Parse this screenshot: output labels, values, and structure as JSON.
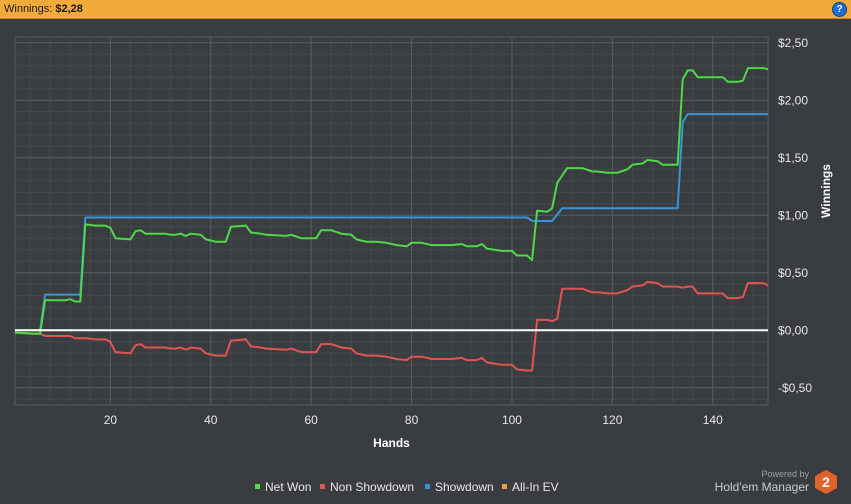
{
  "header": {
    "label": "Winnings:",
    "value": "$2,28",
    "help_icon": "?"
  },
  "chart_data": {
    "type": "line",
    "xlabel": "Hands",
    "ylabel": "Winnings",
    "xlim": [
      1,
      151
    ],
    "ylim": [
      -0.65,
      2.55
    ],
    "x_ticks": [
      20,
      40,
      60,
      80,
      100,
      120,
      140
    ],
    "x_tick_labels": [
      "20",
      "40",
      "60",
      "80",
      "100",
      "120",
      "140"
    ],
    "y_ticks": [
      -0.5,
      0,
      0.5,
      1.0,
      1.5,
      2.0,
      2.5
    ],
    "y_tick_labels": [
      "-$0,50",
      "$0,00",
      "$0,50",
      "$1,00",
      "$1,50",
      "$2,00",
      "$2,50"
    ],
    "grid": true,
    "legend_position": "bottom",
    "series": [
      {
        "name": "Net Won",
        "color": "#4fd84a",
        "points": [
          [
            1,
            -0.02
          ],
          [
            5,
            -0.03
          ],
          [
            6,
            -0.03
          ],
          [
            7,
            0.26
          ],
          [
            11,
            0.26
          ],
          [
            12,
            0.27
          ],
          [
            13,
            0.25
          ],
          [
            14,
            0.25
          ],
          [
            15,
            0.92
          ],
          [
            17,
            0.91
          ],
          [
            19,
            0.91
          ],
          [
            20,
            0.89
          ],
          [
            21,
            0.8
          ],
          [
            24,
            0.79
          ],
          [
            25,
            0.86
          ],
          [
            26,
            0.87
          ],
          [
            27,
            0.84
          ],
          [
            31,
            0.84
          ],
          [
            32,
            0.83
          ],
          [
            33,
            0.83
          ],
          [
            34,
            0.84
          ],
          [
            35,
            0.82
          ],
          [
            36,
            0.84
          ],
          [
            38,
            0.83
          ],
          [
            39,
            0.79
          ],
          [
            41,
            0.77
          ],
          [
            42,
            0.77
          ],
          [
            43,
            0.77
          ],
          [
            44,
            0.9
          ],
          [
            47,
            0.91
          ],
          [
            48,
            0.85
          ],
          [
            50,
            0.84
          ],
          [
            51,
            0.83
          ],
          [
            55,
            0.82
          ],
          [
            56,
            0.83
          ],
          [
            58,
            0.8
          ],
          [
            61,
            0.8
          ],
          [
            62,
            0.87
          ],
          [
            64,
            0.87
          ],
          [
            66,
            0.84
          ],
          [
            68,
            0.83
          ],
          [
            69,
            0.79
          ],
          [
            71,
            0.77
          ],
          [
            73,
            0.77
          ],
          [
            75,
            0.76
          ],
          [
            77,
            0.74
          ],
          [
            79,
            0.73
          ],
          [
            80,
            0.76
          ],
          [
            82,
            0.76
          ],
          [
            84,
            0.74
          ],
          [
            88,
            0.74
          ],
          [
            90,
            0.75
          ],
          [
            91,
            0.73
          ],
          [
            93,
            0.73
          ],
          [
            94,
            0.75
          ],
          [
            95,
            0.71
          ],
          [
            98,
            0.69
          ],
          [
            100,
            0.69
          ],
          [
            101,
            0.65
          ],
          [
            103,
            0.65
          ],
          [
            104,
            0.61
          ],
          [
            105,
            1.04
          ],
          [
            107,
            1.03
          ],
          [
            108,
            1.06
          ],
          [
            109,
            1.28
          ],
          [
            111,
            1.41
          ],
          [
            114,
            1.41
          ],
          [
            116,
            1.38
          ],
          [
            117,
            1.38
          ],
          [
            119,
            1.37
          ],
          [
            121,
            1.37
          ],
          [
            123,
            1.4
          ],
          [
            124,
            1.44
          ],
          [
            126,
            1.45
          ],
          [
            127,
            1.48
          ],
          [
            129,
            1.47
          ],
          [
            130,
            1.44
          ],
          [
            133,
            1.44
          ],
          [
            134,
            2.18
          ],
          [
            135,
            2.26
          ],
          [
            136,
            2.26
          ],
          [
            137,
            2.2
          ],
          [
            142,
            2.2
          ],
          [
            143,
            2.16
          ],
          [
            145,
            2.16
          ],
          [
            146,
            2.17
          ],
          [
            147,
            2.28
          ],
          [
            150,
            2.28
          ],
          [
            151,
            2.27
          ]
        ]
      },
      {
        "name": "Non Showdown",
        "color": "#e05454",
        "points": [
          [
            1,
            -0.02
          ],
          [
            5,
            -0.03
          ],
          [
            6,
            -0.03
          ],
          [
            7,
            -0.05
          ],
          [
            11,
            -0.05
          ],
          [
            12,
            -0.05
          ],
          [
            13,
            -0.07
          ],
          [
            14,
            -0.07
          ],
          [
            15,
            -0.07
          ],
          [
            17,
            -0.08
          ],
          [
            19,
            -0.08
          ],
          [
            20,
            -0.1
          ],
          [
            21,
            -0.19
          ],
          [
            24,
            -0.2
          ],
          [
            25,
            -0.13
          ],
          [
            26,
            -0.12
          ],
          [
            27,
            -0.15
          ],
          [
            31,
            -0.15
          ],
          [
            32,
            -0.16
          ],
          [
            33,
            -0.16
          ],
          [
            34,
            -0.15
          ],
          [
            35,
            -0.17
          ],
          [
            36,
            -0.15
          ],
          [
            38,
            -0.16
          ],
          [
            39,
            -0.2
          ],
          [
            41,
            -0.22
          ],
          [
            42,
            -0.22
          ],
          [
            43,
            -0.22
          ],
          [
            44,
            -0.09
          ],
          [
            47,
            -0.08
          ],
          [
            48,
            -0.14
          ],
          [
            50,
            -0.15
          ],
          [
            51,
            -0.16
          ],
          [
            55,
            -0.17
          ],
          [
            56,
            -0.16
          ],
          [
            58,
            -0.19
          ],
          [
            61,
            -0.19
          ],
          [
            62,
            -0.12
          ],
          [
            64,
            -0.12
          ],
          [
            66,
            -0.15
          ],
          [
            68,
            -0.16
          ],
          [
            69,
            -0.2
          ],
          [
            71,
            -0.22
          ],
          [
            73,
            -0.22
          ],
          [
            75,
            -0.23
          ],
          [
            77,
            -0.25
          ],
          [
            79,
            -0.26
          ],
          [
            80,
            -0.23
          ],
          [
            82,
            -0.23
          ],
          [
            84,
            -0.25
          ],
          [
            88,
            -0.25
          ],
          [
            90,
            -0.24
          ],
          [
            91,
            -0.26
          ],
          [
            93,
            -0.26
          ],
          [
            94,
            -0.24
          ],
          [
            95,
            -0.28
          ],
          [
            98,
            -0.3
          ],
          [
            100,
            -0.3
          ],
          [
            101,
            -0.34
          ],
          [
            103,
            -0.35
          ],
          [
            104,
            -0.35
          ],
          [
            105,
            0.09
          ],
          [
            107,
            0.09
          ],
          [
            108,
            0.08
          ],
          [
            109,
            0.1
          ],
          [
            110,
            0.36
          ],
          [
            114,
            0.36
          ],
          [
            116,
            0.33
          ],
          [
            117,
            0.33
          ],
          [
            119,
            0.32
          ],
          [
            121,
            0.32
          ],
          [
            123,
            0.35
          ],
          [
            124,
            0.38
          ],
          [
            126,
            0.39
          ],
          [
            127,
            0.42
          ],
          [
            129,
            0.41
          ],
          [
            130,
            0.38
          ],
          [
            133,
            0.38
          ],
          [
            134,
            0.37
          ],
          [
            135,
            0.38
          ],
          [
            136,
            0.38
          ],
          [
            137,
            0.32
          ],
          [
            142,
            0.32
          ],
          [
            143,
            0.28
          ],
          [
            145,
            0.28
          ],
          [
            146,
            0.29
          ],
          [
            147,
            0.41
          ],
          [
            150,
            0.41
          ],
          [
            151,
            0.39
          ]
        ]
      },
      {
        "name": "Showdown",
        "color": "#3a93d6",
        "points": [
          [
            1,
            0
          ],
          [
            6,
            0
          ],
          [
            7,
            0.31
          ],
          [
            13,
            0.31
          ],
          [
            14,
            0.31
          ],
          [
            15,
            0.98
          ],
          [
            103,
            0.98
          ],
          [
            104,
            0.95
          ],
          [
            108,
            0.95
          ],
          [
            110,
            1.06
          ],
          [
            133,
            1.06
          ],
          [
            134,
            1.81
          ],
          [
            135,
            1.88
          ],
          [
            151,
            1.88
          ]
        ]
      },
      {
        "name": "All-In EV",
        "color": "#f0a030",
        "points": []
      }
    ],
    "zero_line": true
  },
  "footer": {
    "powered_by": "Powered by",
    "brand": "Hold'em Manager",
    "logo_text": "2"
  }
}
